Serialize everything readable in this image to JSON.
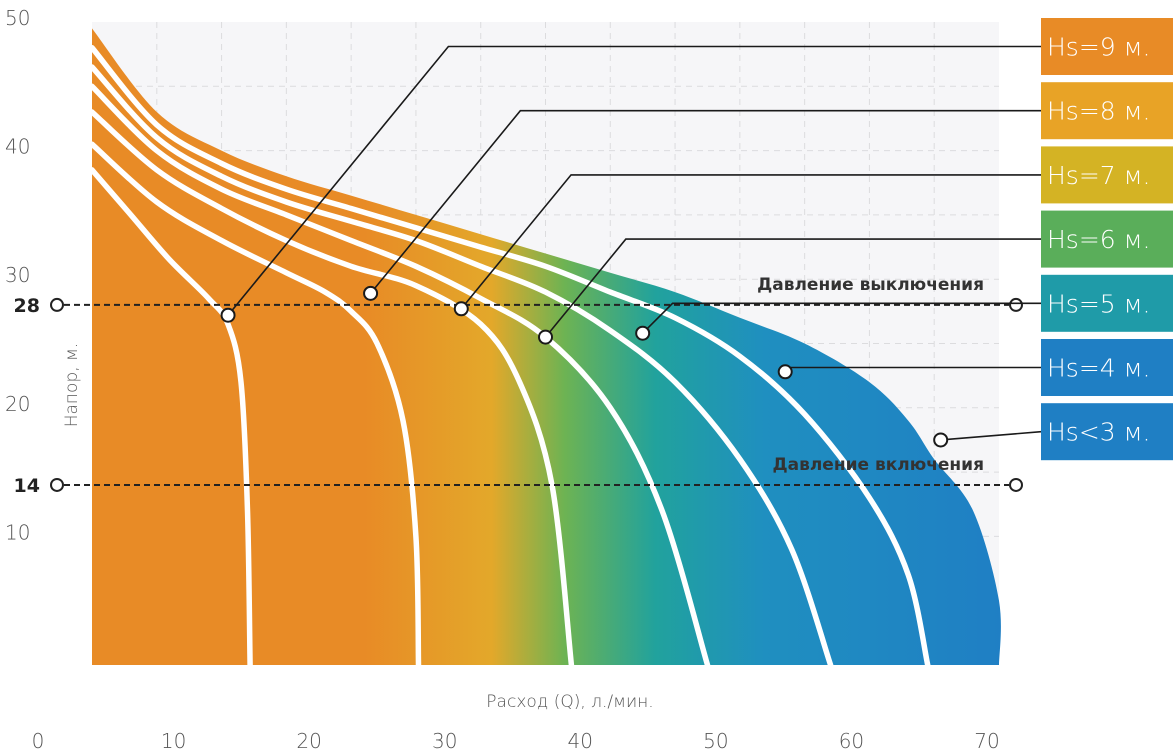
{
  "chart_data": {
    "type": "area",
    "xlabel": "Расход (Q), л./мин.",
    "ylabel": "Напор, м.",
    "xlim": [
      0,
      70
    ],
    "ylim": [
      0,
      50
    ],
    "x_ticks": [
      "0",
      "10",
      "20",
      "30",
      "40",
      "50",
      "60",
      "70"
    ],
    "y_ticks": [
      "50",
      "40",
      "30",
      "20",
      "10"
    ],
    "grid": true,
    "reference_lines": [
      {
        "label": "Давление выключения",
        "value": 28,
        "value_label": "28"
      },
      {
        "label": "Давление включения",
        "value": 14,
        "value_label": "14"
      }
    ],
    "series": [
      {
        "name": "Hs<3 м.",
        "color": "#1f7fc4",
        "x": [
          0,
          5,
          10,
          15,
          20,
          25,
          30,
          35,
          40,
          45,
          50,
          55,
          60,
          63,
          65,
          68,
          70,
          70
        ],
        "y": [
          49.5,
          43,
          40,
          38,
          36.5,
          35,
          33.5,
          32,
          30.5,
          29,
          27,
          25,
          22,
          19,
          16,
          12,
          5,
          0
        ]
      },
      {
        "name": "Hs=4 м.",
        "color": "#1f7fc4",
        "x": [
          0,
          5,
          10,
          15,
          20,
          25,
          30,
          35,
          40,
          45,
          50,
          55,
          60,
          63,
          64.5
        ],
        "y": [
          48,
          42,
          39,
          37,
          35.5,
          34,
          32.5,
          31,
          29,
          27,
          24,
          19.5,
          13,
          7,
          0
        ]
      },
      {
        "name": "Hs=5 м.",
        "color": "#1f8fb8",
        "x": [
          0,
          5,
          10,
          15,
          20,
          25,
          30,
          35,
          40,
          45,
          50,
          54,
          57
        ],
        "y": [
          46.5,
          41,
          38,
          36,
          34.5,
          33,
          31,
          29,
          26,
          22,
          16,
          9,
          0
        ]
      },
      {
        "name": "Hs=6 м.",
        "color": "#2aa39a",
        "x": [
          0,
          5,
          10,
          15,
          20,
          25,
          30,
          35,
          40,
          44,
          47.5
        ],
        "y": [
          45,
          40,
          37,
          35,
          33,
          31,
          28.5,
          25.5,
          20,
          12,
          0
        ]
      },
      {
        "name": "Hs=7 м.",
        "color": "#5aae5a",
        "x": [
          0,
          5,
          10,
          15,
          20,
          25,
          30,
          33,
          35.5,
          37
        ],
        "y": [
          43,
          38.5,
          35.5,
          33,
          31,
          29.5,
          26.5,
          22,
          14,
          0
        ]
      },
      {
        "name": "Hs=8 м.",
        "color": "#d4b324",
        "x": [
          0,
          5,
          10,
          15,
          18,
          20,
          22,
          24,
          25,
          25.2
        ],
        "y": [
          40.5,
          36,
          33,
          30.5,
          29,
          27.5,
          25,
          19,
          10,
          0
        ]
      },
      {
        "name": "Hs=9 м.",
        "color": "#e88b26",
        "x": [
          0,
          3,
          6,
          9,
          10.5,
          11.5,
          12,
          12.2
        ],
        "y": [
          38.5,
          35,
          31.5,
          28.5,
          26.5,
          22,
          12,
          0
        ]
      }
    ],
    "markers": [
      {
        "series": "Hs=9 м.",
        "x": 10.5,
        "y": 27.2
      },
      {
        "series": "Hs=8 м.",
        "x": 21.5,
        "y": 28.9
      },
      {
        "series": "Hs=7 м.",
        "x": 28.5,
        "y": 27.7
      },
      {
        "series": "Hs=6 м.",
        "x": 35,
        "y": 25.5
      },
      {
        "series": "Hs=5 м.",
        "x": 42.5,
        "y": 25.8
      },
      {
        "series": "Hs=4 м.",
        "x": 53.5,
        "y": 22.8
      },
      {
        "series": "Hs<3 м.",
        "x": 65.5,
        "y": 17.5
      }
    ],
    "legend": [
      {
        "label": "Hs=9 м.",
        "color": "#e88b26"
      },
      {
        "label": "Hs=8 м.",
        "color": "#e8a326"
      },
      {
        "label": "Hs=7 м.",
        "color": "#d4b324"
      },
      {
        "label": "Hs=6 м.",
        "color": "#5aae5a"
      },
      {
        "label": "Hs=5 м.",
        "color": "#1f9ba8"
      },
      {
        "label": "Hs=4 м.",
        "color": "#1f7fc4"
      },
      {
        "label": "Hs<3 м.",
        "color": "#1f7fc4"
      }
    ]
  }
}
